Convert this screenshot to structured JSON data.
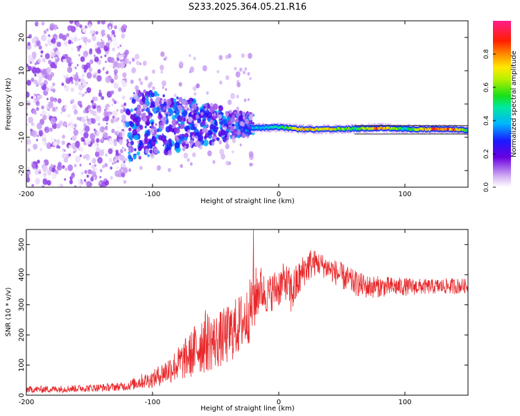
{
  "title": "S233.2025.364.05.21.R16",
  "chart_data": [
    {
      "type": "heatmap",
      "panel": "top",
      "xlabel": "Height of straight line (km)",
      "ylabel": "Frequency (Hz)",
      "xlim": [
        -200,
        150
      ],
      "ylim": [
        -25,
        25
      ],
      "xticks": [
        -200,
        -100,
        0,
        100
      ],
      "yticks": [
        -20,
        -10,
        0,
        10,
        20
      ],
      "colorbar": {
        "label": "Normalized spectral amplitude",
        "range": [
          0,
          1
        ],
        "ticks": [
          0.0,
          0.2,
          0.4,
          0.6,
          0.8
        ],
        "tick_labels": [
          "0.0",
          "0.2",
          "0.4",
          "0.6",
          "0.8"
        ]
      },
      "trace": {
        "x": [
          -20,
          0,
          20,
          40,
          60,
          80,
          100,
          120,
          140,
          150
        ],
        "frequency": [
          -7.2,
          -7.0,
          -7.6,
          -7.6,
          -7.4,
          -7.2,
          -7.5,
          -7.6,
          -7.6,
          -8.0
        ],
        "amplitude": [
          0.45,
          0.55,
          0.85,
          0.8,
          0.6,
          0.95,
          0.5,
          0.95,
          0.9,
          0.5
        ]
      },
      "scatter_regions": [
        {
          "x_range": [
            -200,
            -120
          ],
          "freq_range": [
            -25,
            25
          ],
          "amplitude_range": [
            0.0,
            0.15
          ]
        },
        {
          "x_range": [
            -120,
            -20
          ],
          "freq_range": [
            -15,
            2
          ],
          "amplitude_range": [
            0.1,
            0.4
          ]
        }
      ]
    },
    {
      "type": "line",
      "panel": "bottom",
      "xlabel": "Height of straight line (km)",
      "ylabel": "SNR (10 * v/v)",
      "xlim": [
        -200,
        150
      ],
      "ylim": [
        0,
        550
      ],
      "xticks": [
        -200,
        -100,
        0,
        100
      ],
      "yticks": [
        0,
        100,
        200,
        300,
        400,
        500
      ],
      "color": "#e8282b",
      "series": [
        {
          "name": "SNR",
          "x": [
            -200,
            -180,
            -160,
            -140,
            -120,
            -110,
            -100,
            -90,
            -80,
            -70,
            -60,
            -50,
            -40,
            -30,
            -25,
            -20,
            -15,
            -10,
            0,
            5,
            10,
            15,
            20,
            25,
            30,
            40,
            50,
            60,
            70,
            80,
            100,
            120,
            140,
            150
          ],
          "envelope_low": [
            8,
            8,
            10,
            12,
            15,
            20,
            25,
            35,
            45,
            55,
            70,
            85,
            100,
            140,
            160,
            200,
            280,
            270,
            290,
            320,
            260,
            310,
            360,
            380,
            400,
            380,
            350,
            330,
            320,
            325,
            330,
            335,
            335,
            340
          ],
          "envelope_high": [
            30,
            32,
            35,
            38,
            45,
            70,
            80,
            120,
            160,
            210,
            290,
            270,
            300,
            340,
            360,
            420,
            440,
            390,
            430,
            440,
            420,
            440,
            470,
            490,
            480,
            460,
            440,
            415,
            400,
            395,
            390,
            385,
            390,
            385
          ],
          "spike": {
            "x": -20,
            "y": 550
          }
        }
      ]
    }
  ]
}
